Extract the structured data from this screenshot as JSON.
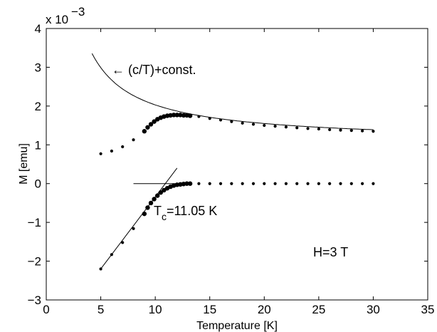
{
  "chart_data": {
    "type": "scatter",
    "xlabel": "Temperature [K]",
    "ylabel": "M [emu]",
    "y_multiplier_label": "x 10",
    "y_multiplier_exponent": "−3",
    "xlim": [
      0,
      35
    ],
    "ylim": [
      -3,
      4
    ],
    "x_ticks": [
      0,
      5,
      10,
      15,
      20,
      25,
      30,
      35
    ],
    "y_ticks": [
      -3,
      -2,
      -1,
      0,
      1,
      2,
      3,
      4
    ],
    "x_tick_labels": [
      "0",
      "5",
      "10",
      "15",
      "20",
      "25",
      "30",
      "35"
    ],
    "y_tick_labels": [
      "−3",
      "−2",
      "−1",
      "0",
      "1",
      "2",
      "3",
      "4"
    ],
    "grid": false,
    "units_note": "M values in units of 1e-3 emu",
    "series": [
      {
        "style": "dots",
        "x": [
          5.0,
          6.0,
          7.0,
          8.0,
          9.0,
          9.3,
          9.6,
          9.9,
          10.2,
          10.5,
          10.8,
          11.1,
          11.4,
          11.7,
          12.0,
          12.3,
          12.6,
          12.9,
          13.2,
          14.0,
          15.0,
          16.0,
          17.0,
          18.0,
          19.0,
          20.0,
          21.0,
          22.0,
          23.0,
          24.0,
          25.0,
          26.0,
          27.0,
          28.0,
          29.0,
          30.0
        ],
        "y": [
          0.77,
          0.84,
          0.95,
          1.13,
          1.35,
          1.45,
          1.53,
          1.6,
          1.66,
          1.7,
          1.73,
          1.75,
          1.76,
          1.77,
          1.77,
          1.77,
          1.76,
          1.76,
          1.75,
          1.73,
          1.68,
          1.64,
          1.6,
          1.56,
          1.53,
          1.5,
          1.48,
          1.46,
          1.44,
          1.42,
          1.41,
          1.39,
          1.38,
          1.37,
          1.36,
          1.35
        ]
      },
      {
        "style": "dots",
        "x": [
          5.0,
          6.0,
          7.0,
          8.0,
          9.0,
          9.3,
          9.6,
          9.9,
          10.2,
          10.5,
          10.8,
          11.1,
          11.4,
          11.7,
          12.0,
          12.3,
          12.6,
          12.9,
          13.2,
          14.0,
          15.0,
          16.0,
          17.0,
          18.0,
          19.0,
          20.0,
          21.0,
          22.0,
          23.0,
          24.0,
          25.0,
          26.0,
          27.0,
          28.0,
          29.0,
          30.0
        ],
        "y": [
          -2.2,
          -1.83,
          -1.52,
          -1.16,
          -0.78,
          -0.62,
          -0.5,
          -0.4,
          -0.31,
          -0.23,
          -0.17,
          -0.12,
          -0.08,
          -0.05,
          -0.03,
          -0.02,
          -0.01,
          0.0,
          0.0,
          0.0,
          0.0,
          0.0,
          0.0,
          0.0,
          0.0,
          0.0,
          0.0,
          0.0,
          0.0,
          0.0,
          0.0,
          0.0,
          0.0,
          0.0,
          0.0,
          0.0
        ]
      }
    ],
    "fit_curve": {
      "form": "c/T + const",
      "c": 9.6,
      "const": 1.07,
      "x_range": [
        4.2,
        30.0
      ]
    },
    "tangent_line": {
      "x": [
        5.0,
        12.0
      ],
      "y": [
        -2.2,
        0.4
      ]
    },
    "baseline_line": {
      "x": [
        8.0,
        13.0
      ],
      "y": [
        0.0,
        0.0
      ]
    },
    "annotations": {
      "curve_label": "← (c/T)+const.",
      "tc_label_main": "T",
      "tc_label_sub": "c",
      "tc_label_value": "=11.05 K",
      "field_label": "H=3 T"
    }
  }
}
